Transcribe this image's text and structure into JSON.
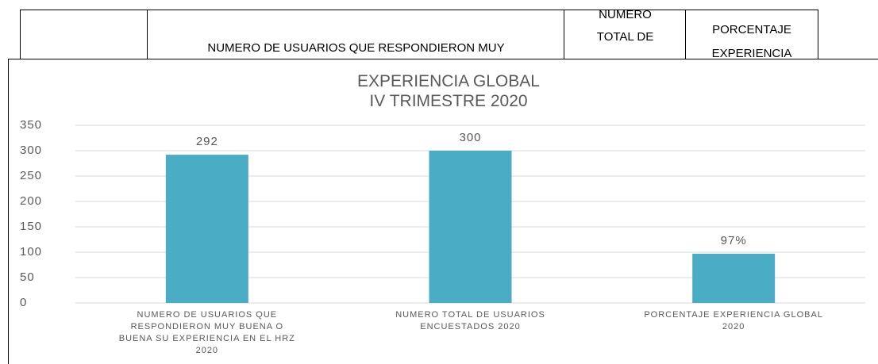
{
  "table": {
    "header": [
      "NUMERO DE USUARIOS QUE RESPONDIERON MUY",
      "NUMERO\nTOTAL DE",
      "PORCENTAJE\nEXPERIENCIA"
    ]
  },
  "chart_data": {
    "type": "bar",
    "title": "EXPERIENCIA GLOBAL\nIV TRIMESTRE 2020",
    "categories": [
      "NUMERO DE USUARIOS QUE\nRESPONDIERON MUY BUENA O\nBUENA SU EXPERIENCIA EN EL HRZ\n2020",
      "NUMERO  TOTAL DE USUARIOS\nENCUESTADOS 2020",
      "PORCENTAJE EXPERIENCIA GLOBAL\n2020"
    ],
    "values": [
      292,
      300,
      97
    ],
    "value_labels": [
      "292",
      "300",
      "97%"
    ],
    "color": "#4bacc6",
    "ylim": [
      0,
      350
    ],
    "yticks": [
      0,
      50,
      100,
      150,
      200,
      250,
      300,
      350
    ],
    "grid": true
  }
}
